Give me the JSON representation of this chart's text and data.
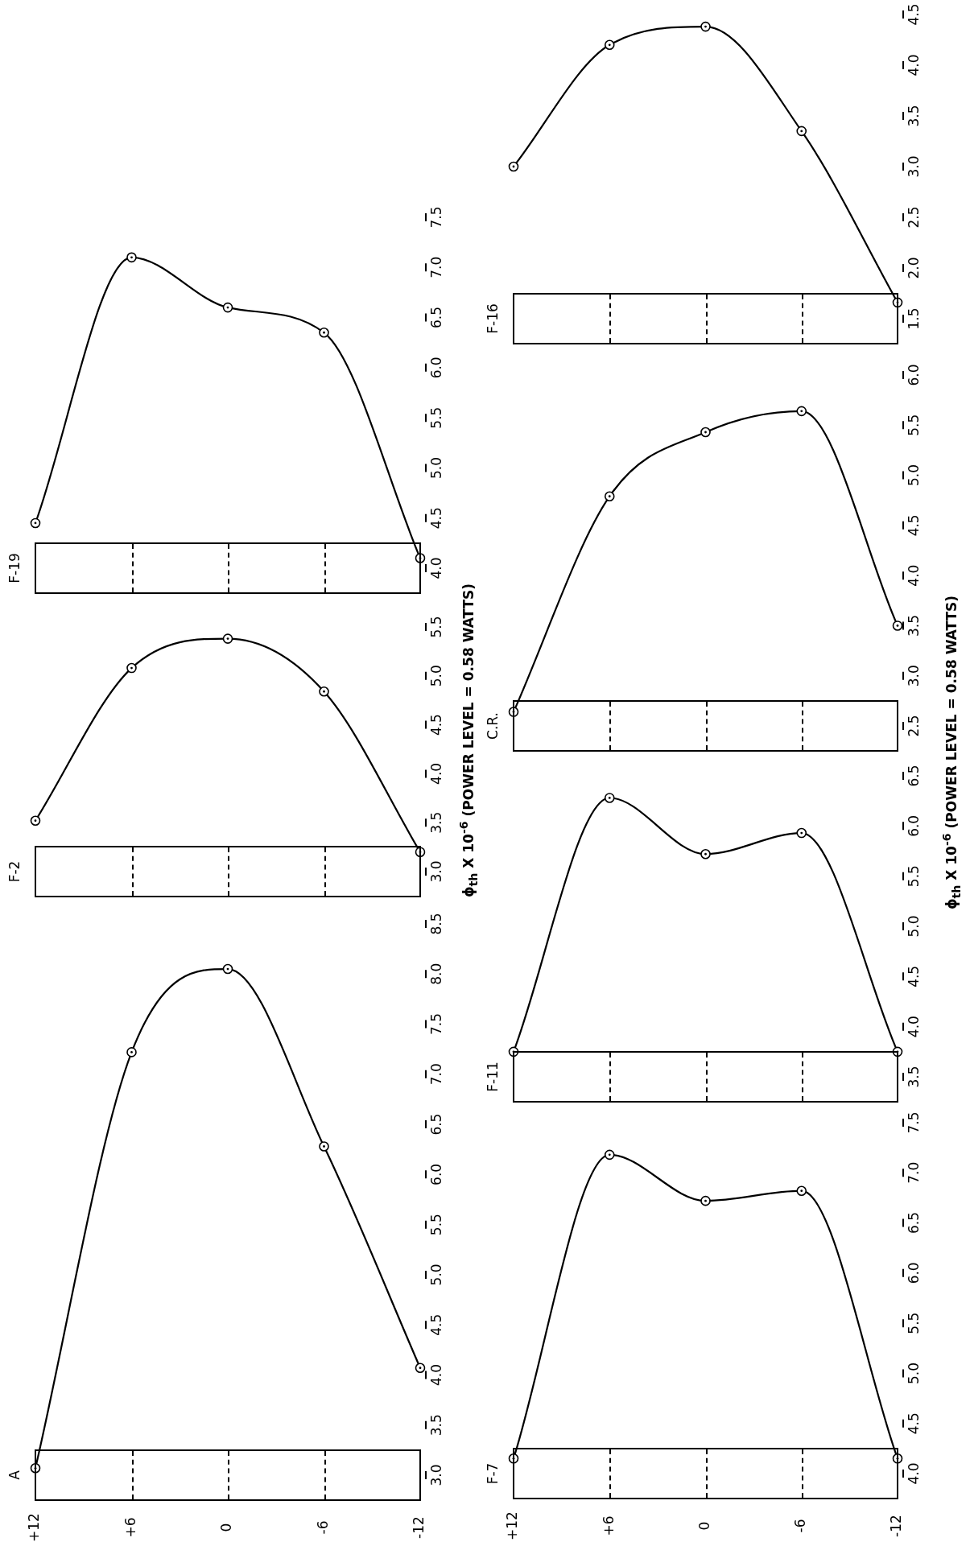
{
  "chart_data": [
    {
      "type": "line",
      "title": "F-19",
      "categories": [
        "+12",
        "+6",
        "0",
        "-6",
        "-12"
      ],
      "values": [
        4.45,
        7.1,
        6.6,
        6.35,
        4.1
      ],
      "color": "#000000",
      "marker": "circle",
      "ylim": [
        4.0,
        7.5
      ],
      "yticks": [
        {
          "value": 4,
          "label": "4.0"
        },
        4.5,
        {
          "value": 5,
          "label": "5.0"
        },
        5.5,
        {
          "value": 6,
          "label": "6.0"
        },
        6.5,
        {
          "value": 7,
          "label": "7.0"
        },
        7.5
      ],
      "tick_labels": "y",
      "legend": false
    },
    {
      "type": "line",
      "title": "F-2",
      "ylabel": "ϕ$_{th}$ X 10$^{-6}$ (POWER LEVEL = 0.58 WATTS)",
      "categories": [
        "+12",
        "+6",
        "0",
        "-6",
        "-12"
      ],
      "values": [
        3.52,
        5.08,
        5.38,
        4.84,
        3.2
      ],
      "color": "#000000",
      "marker": "circle",
      "ylim": [
        3.0,
        5.5
      ],
      "yticks": [
        {
          "value": 3,
          "label": "3.0"
        },
        3.5,
        {
          "value": 4,
          "label": "4.0"
        },
        4.5,
        {
          "value": 5,
          "label": "5.0"
        },
        5.5
      ],
      "tick_labels": "y",
      "legend": false
    },
    {
      "type": "line",
      "title": "A",
      "categories": [
        "+12",
        "+6",
        "0",
        "-6",
        "-12"
      ],
      "values": [
        3.07,
        7.22,
        8.05,
        6.28,
        4.07
      ],
      "color": "#000000",
      "marker": "circle",
      "ylim": [
        3.0,
        8.5
      ],
      "yticks": [
        {
          "value": 3,
          "label": "3.0"
        },
        3.5,
        {
          "value": 4,
          "label": "4.0"
        },
        4.5,
        {
          "value": 5,
          "label": "5.0"
        },
        5.5,
        {
          "value": 6,
          "label": "6.0"
        },
        6.5,
        {
          "value": 7,
          "label": "7.0"
        },
        7.5,
        {
          "value": 8,
          "label": "8.0"
        },
        8.5
      ],
      "legend": false
    },
    {
      "type": "line",
      "title": "F-16",
      "categories": [
        "+12",
        "+6",
        "0",
        "-6",
        "-12"
      ],
      "values": [
        3.0,
        4.2,
        4.38,
        3.35,
        1.66
      ],
      "color": "#000000",
      "marker": "circle",
      "ylim": [
        1.5,
        4.5
      ],
      "yticks": [
        1.5,
        {
          "value": 2,
          "label": "2.0"
        },
        2.5,
        {
          "value": 3,
          "label": "3.0"
        },
        3.5,
        {
          "value": 4,
          "label": "4.0"
        },
        4.5
      ],
      "tick_labels": "y",
      "legend": false
    },
    {
      "type": "line",
      "title": "C.R.",
      "ylabel": "ϕ$_{th}$ X 10$^{-6}$ (POWER LEVEL = 0.58 WATTS)",
      "categories": [
        "+12",
        "+6",
        "0",
        "-6",
        "-12"
      ],
      "values": [
        2.64,
        4.79,
        5.43,
        5.64,
        3.5
      ],
      "color": "#000000",
      "marker": "circle",
      "ylim": [
        2.5,
        6.0
      ],
      "yticks": [
        2.5,
        {
          "value": 3,
          "label": "3.0"
        },
        3.5,
        {
          "value": 4,
          "label": "4.0"
        },
        4.5,
        {
          "value": 5,
          "label": "5.0"
        },
        5.5,
        {
          "value": 6,
          "label": "6.0"
        }
      ],
      "tick_labels": "y",
      "legend": false
    },
    {
      "type": "line",
      "title": "F-11",
      "categories": [
        "+12",
        "+6",
        "0",
        "-6",
        "-12"
      ],
      "values": [
        3.75,
        6.28,
        5.72,
        5.93,
        3.75
      ],
      "color": "#000000",
      "marker": "circle",
      "ylim": [
        3.5,
        6.5
      ],
      "yticks": [
        3.5,
        {
          "value": 4,
          "label": "4.0"
        },
        4.5,
        {
          "value": 5,
          "label": "5.0"
        },
        5.5,
        {
          "value": 6,
          "label": "6.0"
        },
        6.5
      ],
      "tick_labels": "y",
      "legend": false
    },
    {
      "type": "line",
      "title": "F-7",
      "categories": [
        "+12",
        "+6",
        "0",
        "-6",
        "-12"
      ],
      "values": [
        4.15,
        7.18,
        6.72,
        6.82,
        4.15
      ],
      "color": "#000000",
      "marker": "circle",
      "ylim": [
        4.0,
        7.5
      ],
      "yticks": [
        {
          "value": 4,
          "label": "4.0"
        },
        4.5,
        {
          "value": 5,
          "label": "5.0"
        },
        5.5,
        {
          "value": 6,
          "label": "6.0"
        },
        6.5,
        {
          "value": 7,
          "label": "7.0"
        },
        7.5
      ],
      "legend": false
    }
  ]
}
